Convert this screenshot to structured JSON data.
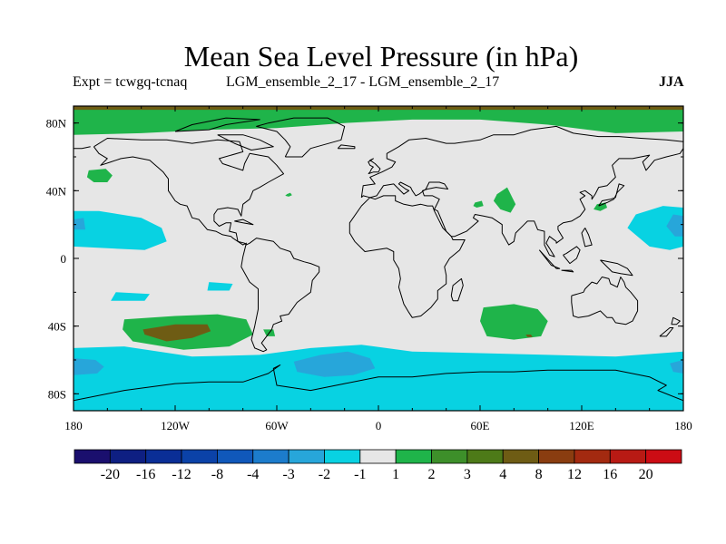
{
  "title": "Mean Sea Level Pressure (in hPa)",
  "experiment": "Expt = tcwgq-tcnaq",
  "run": "LGM_ensemble_2_17 - LGM_ensemble_2_17",
  "season": "JJA",
  "chart_data": {
    "type": "heatmap",
    "title": "Mean Sea Level Pressure (in hPa)",
    "xlabel": "",
    "ylabel": "",
    "xlim": [
      -180,
      180
    ],
    "ylim": [
      -90,
      90
    ],
    "x_ticks": [
      -180,
      -120,
      -60,
      0,
      60,
      120,
      180
    ],
    "x_tick_labels": [
      "180",
      "120W",
      "60W",
      "0",
      "60E",
      "120E",
      "180"
    ],
    "y_ticks": [
      80,
      40,
      0,
      -40,
      -80
    ],
    "y_tick_labels": [
      "80N",
      "40N",
      "0",
      "40S",
      "80S"
    ],
    "colorbar": {
      "labels": [
        "-20",
        "-16",
        "-12",
        "-8",
        "-4",
        "-3",
        "-2",
        "-1",
        "1",
        "2",
        "3",
        "4",
        "8",
        "12",
        "16",
        "20"
      ],
      "colors": [
        "#1a0f6e",
        "#0e1f82",
        "#0a2e96",
        "#0b42a8",
        "#1058ba",
        "#1c7ccc",
        "#27a6da",
        "#08d2e2",
        "#e6e6e6",
        "#1fb44a",
        "#3d8f2a",
        "#4d7a18",
        "#6e5c14",
        "#8a3d10",
        "#a32a10",
        "#b81a14",
        "#cc0c14"
      ]
    },
    "background_value_color": "#e6e6e6",
    "regions": [
      {
        "name": "arctic-positive",
        "color": "#1fb44a",
        "lons": [
          -180,
          -140,
          -100,
          -60,
          -20,
          20,
          60,
          100,
          140,
          180,
          180,
          140,
          100,
          60,
          20,
          -20,
          -60,
          -100,
          -140,
          -180
        ],
        "lats": [
          90,
          90,
          90,
          90,
          90,
          90,
          90,
          90,
          90,
          90,
          75,
          74,
          79,
          82,
          82,
          80,
          77,
          76,
          74,
          73
        ]
      },
      {
        "name": "arctic-cap-brown",
        "color": "#6e5c14",
        "lons": [
          -180,
          180,
          180,
          -180
        ],
        "lats": [
          90,
          90,
          87.8,
          87.8
        ]
      },
      {
        "name": "north-pacific-positive",
        "color": "#1fb44a",
        "lons": [
          -171,
          -161,
          -157,
          -160,
          -168,
          -172
        ],
        "lats": [
          52,
          53,
          49,
          45,
          45,
          48
        ]
      },
      {
        "name": "small-atlantic-positive",
        "color": "#1fb44a",
        "lons": [
          -54,
          -52,
          -51,
          -53,
          -55
        ],
        "lats": [
          38,
          38.8,
          37.4,
          36.5,
          37
        ]
      },
      {
        "name": "central-asia-positive",
        "color": "#1fb44a",
        "lons": [
          70,
          76,
          81,
          78,
          72,
          68
        ],
        "lats": [
          38,
          42,
          32,
          27,
          29,
          34
        ]
      },
      {
        "name": "mideast-positive",
        "color": "#1fb44a",
        "lons": [
          57,
          61,
          62,
          58,
          56
        ],
        "lats": [
          33,
          34,
          31,
          30,
          31
        ]
      },
      {
        "name": "japan-positive",
        "color": "#1fb44a",
        "lons": [
          129,
          134,
          135,
          131,
          127
        ],
        "lats": [
          32,
          33,
          30,
          28,
          29
        ]
      },
      {
        "name": "east-pacific-negative",
        "color": "#08d2e2",
        "lons": [
          -180,
          -165,
          -140,
          -128,
          -125,
          -138,
          -160,
          -180
        ],
        "lats": [
          28,
          28,
          24,
          18,
          10,
          5,
          6,
          7
        ]
      },
      {
        "name": "west-pacific-negative",
        "color": "#08d2e2",
        "lons": [
          180,
          168,
          152,
          147,
          160,
          172,
          180
        ],
        "lats": [
          30,
          31,
          26,
          18,
          7,
          5,
          7
        ]
      },
      {
        "name": "west-pacific-core",
        "color": "#27a6da",
        "lons": [
          180,
          174,
          170,
          175,
          180
        ],
        "lats": [
          25,
          26,
          19,
          13,
          13
        ]
      },
      {
        "name": "east-pacific-core",
        "color": "#27a6da",
        "lons": [
          -180,
          -174,
          -173,
          -180
        ],
        "lats": [
          23,
          24,
          17,
          17
        ]
      },
      {
        "name": "tropical-pacific-negative",
        "color": "#08d2e2",
        "lons": [
          -155,
          -135,
          -138,
          -158
        ],
        "lats": [
          -20,
          -21,
          -25,
          -25
        ]
      },
      {
        "name": "tropical-pacific-negative-2",
        "color": "#08d2e2",
        "lons": [
          -100,
          -86,
          -88,
          -101
        ],
        "lats": [
          -14,
          -15,
          -19,
          -19
        ]
      },
      {
        "name": "south-negative-band",
        "color": "#08d2e2",
        "lons": [
          -180,
          -150,
          -110,
          -70,
          -40,
          -10,
          20,
          60,
          100,
          140,
          180,
          180,
          140,
          100,
          60,
          20,
          -20,
          -60,
          -100,
          -140,
          -180
        ],
        "lats": [
          -53,
          -52,
          -58,
          -57,
          -53,
          -51,
          -55,
          -56,
          -57,
          -58,
          -55,
          -90,
          -90,
          -90,
          -90,
          -90,
          -90,
          -90,
          -90,
          -90,
          -90
        ]
      },
      {
        "name": "south-atlantic-core",
        "color": "#27a6da",
        "lons": [
          -50,
          -34,
          -18,
          -5,
          -2,
          -15,
          -32,
          -48
        ],
        "lats": [
          -61,
          -57,
          -55,
          -59,
          -65,
          -69,
          -70,
          -67
        ]
      },
      {
        "name": "southwest-pacific-core",
        "color": "#27a6da",
        "lons": [
          -180,
          -167,
          -162,
          -166,
          -180
        ],
        "lats": [
          -59,
          -60,
          -64,
          -68,
          -69
        ]
      },
      {
        "name": "southeast-core",
        "color": "#27a6da",
        "lons": [
          180,
          172,
          174,
          180
        ],
        "lats": [
          -60,
          -62,
          -67,
          -68
        ]
      },
      {
        "name": "south-pacific-positive",
        "color": "#1fb44a",
        "lons": [
          -150,
          -120,
          -95,
          -78,
          -74,
          -88,
          -115,
          -145,
          -151
        ],
        "lats": [
          -36,
          -34,
          -33,
          -36,
          -45,
          -52,
          -54,
          -49,
          -42
        ]
      },
      {
        "name": "south-pacific-strong",
        "color": "#6e5c14",
        "lons": [
          -139,
          -120,
          -101,
          -99,
          -110,
          -125,
          -138
        ],
        "lats": [
          -42,
          -39,
          -39,
          -43,
          -47,
          -49,
          -45
        ]
      },
      {
        "name": "chile-small-positive",
        "color": "#1fb44a",
        "lons": [
          -68,
          -62,
          -61,
          -66
        ],
        "lats": [
          -42,
          -42,
          -46,
          -46
        ]
      },
      {
        "name": "south-indian-positive",
        "color": "#1fb44a",
        "lons": [
          62,
          80,
          94,
          100,
          96,
          80,
          64,
          60
        ],
        "lats": [
          -29,
          -27,
          -30,
          -37,
          -46,
          -48,
          -46,
          -37
        ]
      },
      {
        "name": "south-indian-strong",
        "color": "#6e5c14",
        "lons": [
          87,
          90,
          91,
          88
        ],
        "lats": [
          -45,
          -45,
          -46.5,
          -46.5
        ]
      }
    ]
  }
}
